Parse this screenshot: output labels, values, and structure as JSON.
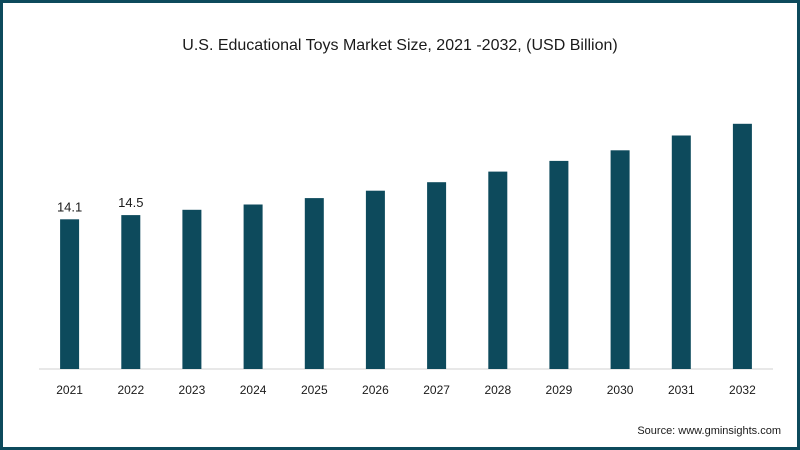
{
  "chart_data": {
    "type": "bar",
    "title": "U.S. Educational Toys Market Size, 2021 -2032, (USD Billion)",
    "xlabel": "",
    "ylabel": "",
    "categories": [
      "2021",
      "2022",
      "2023",
      "2024",
      "2025",
      "2026",
      "2027",
      "2028",
      "2029",
      "2030",
      "2031",
      "2032"
    ],
    "values": [
      14.1,
      14.5,
      15.0,
      15.5,
      16.1,
      16.8,
      17.6,
      18.6,
      19.6,
      20.6,
      22.0,
      23.1
    ],
    "data_labels": [
      "14.1",
      "14.5",
      "",
      "",
      "",
      "",
      "",
      "",
      "",
      "",
      "",
      ""
    ],
    "ylim": [
      0,
      26
    ],
    "grid": false,
    "legend": "none",
    "bar_color": "#0d4a5c"
  },
  "footer": {
    "source": "Source: www.gminsights.com"
  }
}
